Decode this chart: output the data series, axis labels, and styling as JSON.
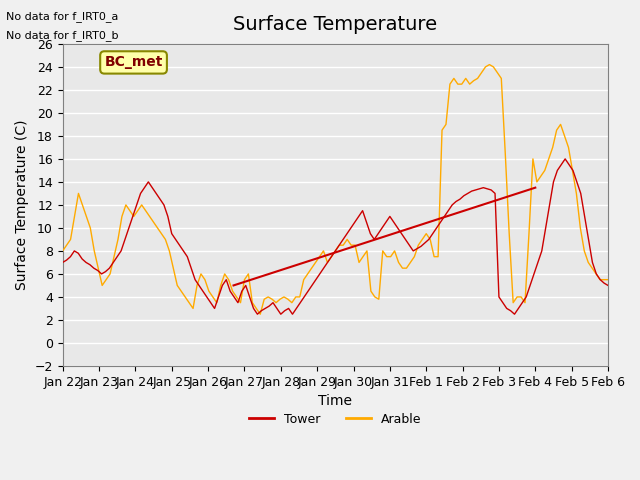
{
  "title": "Surface Temperature",
  "ylabel": "Surface Temperature (C)",
  "xlabel": "Time",
  "ylim": [
    -2,
    26
  ],
  "yticks": [
    -2,
    0,
    2,
    4,
    6,
    8,
    10,
    12,
    14,
    16,
    18,
    20,
    22,
    24,
    26
  ],
  "xtick_labels": [
    "Jan 22",
    "Jan 23",
    "Jan 24",
    "Jan 25",
    "Jan 26",
    "Jan 27",
    "Jan 28",
    "Jan 29",
    "Jan 30",
    "Jan 31",
    "Feb 1",
    "Feb 2",
    "Feb 3",
    "Feb 4",
    "Feb 5",
    "Feb 6"
  ],
  "no_data_text": [
    "No data for f_IRT0_a",
    "No data for f_IRT0_b"
  ],
  "bc_met_label": "BC_met",
  "legend_entries": [
    "Tower",
    "Arable"
  ],
  "tower_color": "#cc0000",
  "arable_color": "#ffaa00",
  "plot_bg_color": "#e8e8e8",
  "fig_bg_color": "#f0f0f0",
  "grid_color": "#ffffff",
  "title_fontsize": 14,
  "axis_label_fontsize": 10,
  "tick_fontsize": 9,
  "tower_y": [
    7.0,
    7.2,
    7.5,
    8.0,
    7.8,
    7.3,
    7.0,
    6.8,
    6.5,
    6.3,
    6.0,
    6.2,
    6.5,
    7.0,
    7.5,
    8.0,
    9.0,
    10.0,
    11.0,
    12.0,
    13.0,
    13.5,
    14.0,
    13.5,
    13.0,
    12.5,
    12.0,
    11.0,
    9.5,
    9.0,
    8.5,
    8.0,
    7.5,
    6.5,
    5.5,
    5.0,
    4.5,
    4.0,
    3.5,
    3.0,
    4.0,
    5.0,
    5.5,
    4.5,
    4.0,
    3.5,
    4.5,
    5.0,
    4.0,
    3.0,
    2.5,
    2.8,
    3.0,
    3.2,
    3.5,
    3.0,
    2.5,
    2.8,
    3.0,
    2.5,
    3.0,
    3.5,
    4.0,
    4.5,
    5.0,
    5.5,
    6.0,
    6.5,
    7.0,
    7.5,
    8.0,
    8.5,
    9.0,
    9.5,
    10.0,
    10.5,
    11.0,
    11.5,
    10.5,
    9.5,
    9.0,
    9.5,
    10.0,
    10.5,
    11.0,
    10.5,
    10.0,
    9.5,
    9.0,
    8.5,
    8.0,
    8.2,
    8.4,
    8.7,
    9.0,
    9.5,
    10.0,
    10.5,
    11.0,
    11.5,
    12.0,
    12.3,
    12.5,
    12.8,
    13.0,
    13.2,
    13.3,
    13.4,
    13.5,
    13.4,
    13.3,
    13.0,
    4.0,
    3.5,
    3.0,
    2.8,
    2.5,
    3.0,
    3.5,
    4.0,
    5.0,
    6.0,
    7.0,
    8.0,
    10.0,
    12.0,
    14.0,
    15.0,
    15.5,
    16.0,
    15.5,
    15.0,
    14.0,
    13.0,
    11.0,
    9.0,
    7.0,
    6.0,
    5.5,
    5.2,
    5.0
  ],
  "arable_y": [
    8.0,
    8.5,
    9.0,
    11.0,
    13.0,
    12.0,
    11.0,
    10.0,
    8.0,
    6.5,
    5.0,
    5.5,
    6.0,
    7.5,
    9.0,
    11.0,
    12.0,
    11.5,
    11.0,
    11.5,
    12.0,
    11.5,
    11.0,
    10.5,
    10.0,
    9.5,
    9.0,
    8.0,
    6.5,
    5.0,
    4.5,
    4.0,
    3.5,
    3.0,
    5.0,
    6.0,
    5.5,
    4.5,
    4.0,
    3.5,
    5.0,
    6.0,
    5.5,
    4.5,
    4.0,
    3.5,
    5.5,
    6.0,
    3.5,
    3.0,
    2.5,
    3.8,
    4.0,
    3.8,
    3.5,
    3.8,
    4.0,
    3.8,
    3.5,
    4.0,
    4.0,
    5.5,
    6.0,
    6.5,
    7.0,
    7.5,
    8.0,
    7.0,
    7.5,
    8.0,
    8.5,
    8.5,
    9.0,
    8.5,
    8.5,
    7.0,
    7.5,
    8.0,
    4.5,
    4.0,
    3.8,
    8.0,
    7.5,
    7.5,
    8.0,
    7.0,
    6.5,
    6.5,
    7.0,
    7.5,
    8.5,
    9.0,
    9.5,
    9.0,
    7.5,
    7.5,
    18.5,
    19.0,
    22.5,
    23.0,
    22.5,
    22.5,
    23.0,
    22.5,
    22.8,
    23.0,
    23.5,
    24.0,
    24.2,
    24.0,
    23.5,
    23.0,
    16.5,
    9.5,
    3.5,
    4.0,
    4.0,
    3.5,
    9.5,
    16.0,
    14.0,
    14.5,
    15.0,
    16.0,
    17.0,
    18.5,
    19.0,
    18.0,
    17.0,
    15.0,
    13.0,
    10.0,
    8.0,
    7.0,
    6.5,
    6.0,
    5.5,
    5.5,
    5.5
  ],
  "trend_x": [
    4.7,
    13.0
  ],
  "trend_y": [
    5.0,
    13.5
  ],
  "line_width": 1.0,
  "xlim": [
    0,
    15
  ]
}
